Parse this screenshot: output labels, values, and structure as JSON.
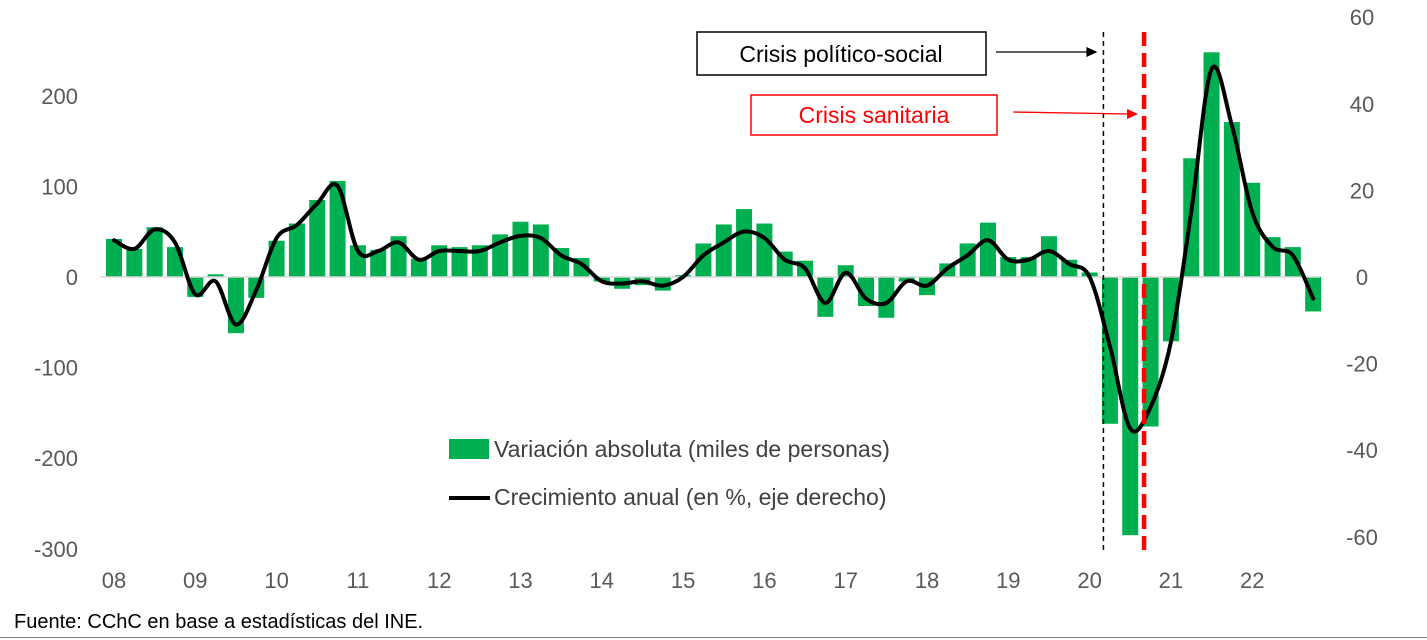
{
  "chart_data": {
    "type": "bar",
    "title": "",
    "xlabel": "",
    "ylabel": "",
    "ylim": [
      -300,
      300
    ],
    "y2lim": [
      -60,
      60
    ],
    "yticks": [
      -300,
      -200,
      -100,
      0,
      100,
      200
    ],
    "y2ticks": [
      -60,
      -40,
      -20,
      0,
      20,
      40,
      60
    ],
    "xticks": [
      "08",
      "09",
      "10",
      "11",
      "12",
      "13",
      "14",
      "15",
      "16",
      "17",
      "18",
      "19",
      "20",
      "21",
      "22"
    ],
    "x_start": 2008.0,
    "step": 0.25,
    "series": [
      {
        "name": "Variación absoluta (miles de personas)",
        "kind": "bar",
        "axis": "left",
        "color": "#00B050",
        "values": [
          42,
          31,
          55,
          33,
          -22,
          3,
          -62,
          -23,
          40,
          59,
          85,
          106,
          35,
          30,
          45,
          20,
          35,
          33,
          35,
          47,
          61,
          58,
          32,
          21,
          -5,
          -13,
          -9,
          -15,
          2,
          37,
          58,
          75,
          59,
          28,
          18,
          -44,
          13,
          -32,
          -45,
          -5,
          -20,
          15,
          37,
          60,
          22,
          22,
          45,
          19,
          5,
          -162,
          -285,
          -165,
          -71,
          131,
          248,
          171,
          104,
          44,
          33,
          -38
        ]
      },
      {
        "name": "Crecimiento anual (en %, eje derecho)",
        "kind": "line",
        "axis": "right",
        "color": "#000000",
        "values": [
          8.5,
          6.5,
          11,
          8,
          -4,
          -1,
          -11,
          -3,
          9,
          12,
          17,
          21,
          6,
          6,
          8,
          4,
          6,
          6,
          6,
          8,
          9.5,
          9,
          5,
          3,
          -1,
          -1.5,
          -1,
          -2,
          0,
          5,
          8,
          10.5,
          9,
          4,
          2,
          -6,
          1,
          -5,
          -6,
          -1,
          -2,
          2,
          5,
          8.5,
          4,
          4,
          6,
          3,
          0,
          -16,
          -35,
          -30,
          -15,
          15,
          48,
          35,
          15,
          7,
          5,
          -5
        ]
      }
    ],
    "legend": [
      "Variación absoluta (miles de personas)",
      "Crecimiento anual (en %, eje derecho)"
    ],
    "annotations": [
      {
        "label": "Crisis político-social",
        "x": 2020.17,
        "color": "#000000",
        "style": "dashed-thin"
      },
      {
        "label": "Crisis sanitaria",
        "x": 2020.67,
        "color": "#FF0000",
        "style": "dashed-thick"
      }
    ]
  },
  "source": "Fuente: CChC en base a estadísticas del INE."
}
